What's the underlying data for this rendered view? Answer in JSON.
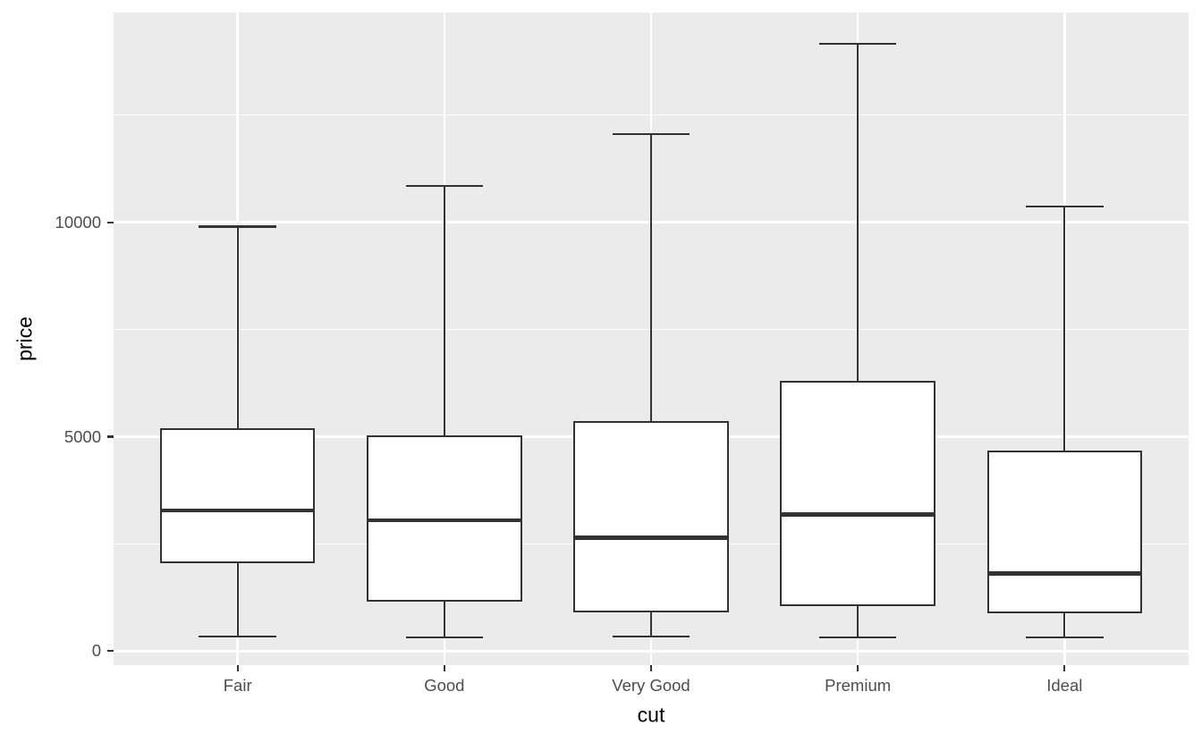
{
  "chart_data": {
    "type": "boxplot",
    "title": "",
    "xlabel": "cut",
    "ylabel": "price",
    "categories": [
      "Fair",
      "Good",
      "Very Good",
      "Premium",
      "Ideal"
    ],
    "series": [
      {
        "category": "Fair",
        "whisker_low": 337,
        "q1": 2050.25,
        "median": 3282,
        "q3": 5205.5,
        "whisker_high": 9899
      },
      {
        "category": "Good",
        "whisker_low": 327,
        "q1": 1145,
        "median": 3050.5,
        "q3": 5028,
        "whisker_high": 10845
      },
      {
        "category": "Very Good",
        "whisker_low": 336,
        "q1": 912,
        "median": 2648,
        "q3": 5372.75,
        "whisker_high": 12060
      },
      {
        "category": "Premium",
        "whisker_low": 326,
        "q1": 1046,
        "median": 3185,
        "q3": 6296,
        "whisker_high": 14170
      },
      {
        "category": "Ideal",
        "whisker_low": 326,
        "q1": 878,
        "median": 1810,
        "q3": 4678.5,
        "whisker_high": 10370
      }
    ],
    "y_axis": {
      "ticks": [
        0,
        5000,
        10000
      ],
      "tick_labels": [
        "0",
        "5000",
        "10000"
      ],
      "minor_ticks": [
        2500,
        7500,
        12500
      ],
      "range": [
        -327,
        14893
      ]
    },
    "x_axis": {
      "tick_labels": [
        "Fair",
        "Good",
        "Very Good",
        "Premium",
        "Ideal"
      ]
    },
    "grid": true,
    "legend": false,
    "colors": {
      "panel_bg": "#EBEBEB",
      "grid": "#FFFFFF",
      "box_stroke": "#333333",
      "box_fill": "#FFFFFF",
      "axis_text": "#4D4D4D",
      "axis_title": "#000000",
      "tick_mark": "#333333"
    }
  }
}
